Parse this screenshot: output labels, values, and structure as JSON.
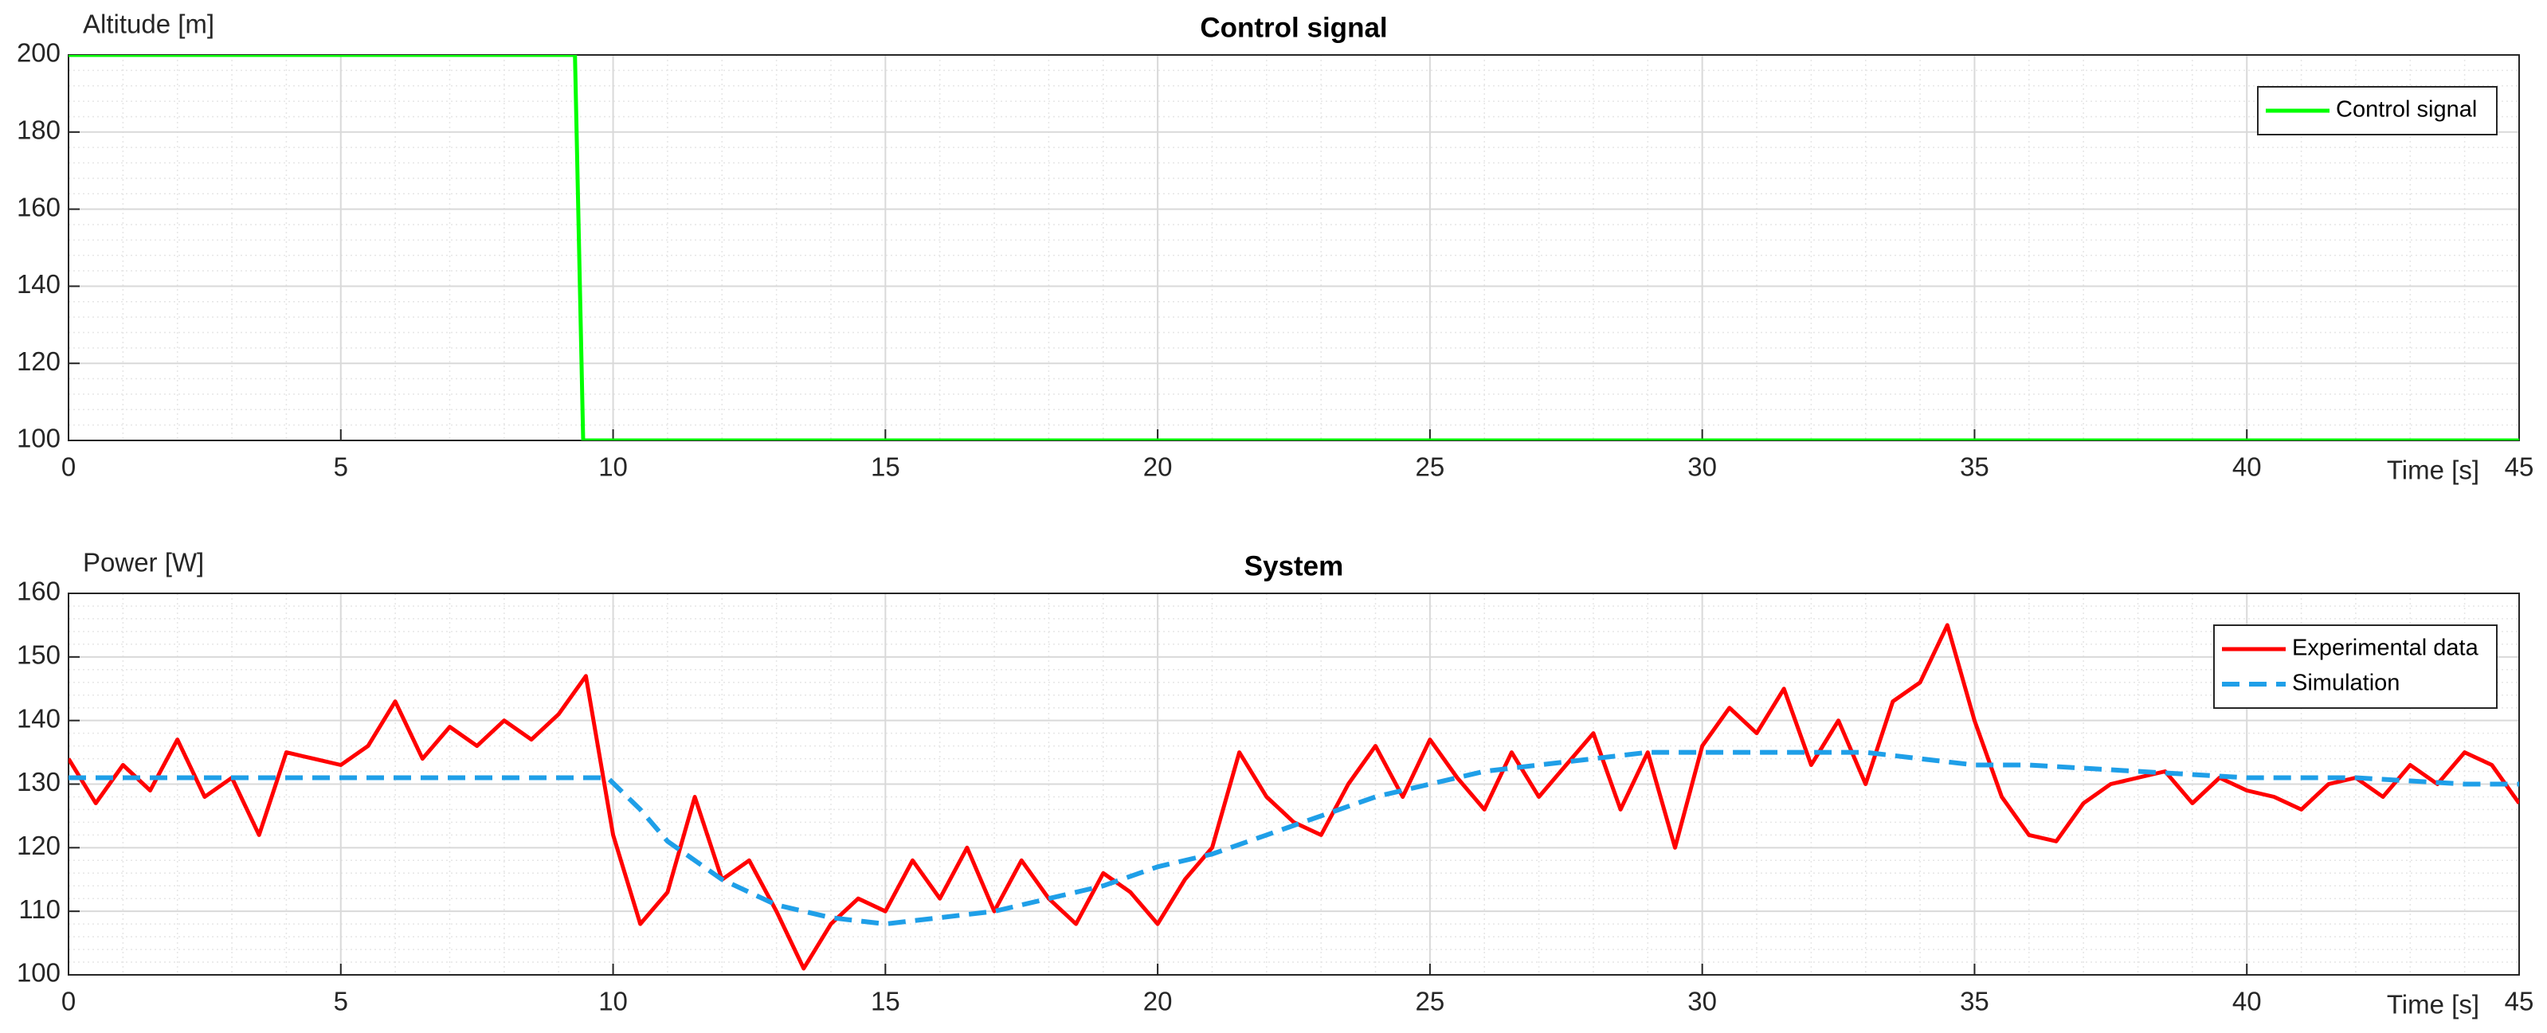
{
  "chart_data": [
    {
      "type": "line",
      "title": "Control signal",
      "y_label": "Altitude [m]",
      "x_label": "Time [s]",
      "xlim": [
        0,
        45
      ],
      "xticks": [
        0,
        5,
        10,
        15,
        20,
        25,
        30,
        35,
        40,
        45
      ],
      "ylim": [
        100,
        200
      ],
      "yticks": [
        100,
        120,
        140,
        160,
        180,
        200
      ],
      "grid": true,
      "minor_grid": true,
      "legend": "upper right",
      "series": [
        {
          "name": "Control signal",
          "color": "#00ff00",
          "linestyle": "solid",
          "x": [
            0,
            9.3,
            9.45,
            45
          ],
          "values": [
            200,
            200,
            100,
            100
          ]
        }
      ]
    },
    {
      "type": "line",
      "title": "System",
      "y_label": "Power [W]",
      "x_label": "Time [s]",
      "xlim": [
        0,
        45
      ],
      "xticks": [
        0,
        5,
        10,
        15,
        20,
        25,
        30,
        35,
        40,
        45
      ],
      "ylim": [
        100,
        160
      ],
      "yticks": [
        100,
        110,
        120,
        130,
        140,
        150,
        160
      ],
      "grid": true,
      "minor_grid": true,
      "legend": "upper right",
      "series": [
        {
          "name": "Experimental data",
          "color": "#ff0000",
          "linestyle": "solid",
          "x": [
            0,
            0.5,
            1,
            1.5,
            2,
            2.5,
            3,
            3.5,
            4,
            4.5,
            5,
            5.5,
            6,
            6.5,
            7,
            7.5,
            8,
            8.5,
            9,
            9.5,
            10,
            10.5,
            11,
            11.5,
            12,
            12.5,
            13,
            13.5,
            14,
            14.5,
            15,
            15.5,
            16,
            16.5,
            17,
            17.5,
            18,
            18.5,
            19,
            19.5,
            20,
            20.5,
            21,
            21.5,
            22,
            22.5,
            23,
            23.5,
            24,
            24.5,
            25,
            25.5,
            26,
            26.5,
            27,
            27.5,
            28,
            28.5,
            29,
            29.5,
            30,
            30.5,
            31,
            31.5,
            32,
            32.5,
            33,
            33.5,
            34,
            34.5,
            35,
            35.5,
            36,
            36.5,
            37,
            37.5,
            38,
            38.5,
            39,
            39.5,
            40,
            40.5,
            41,
            41.5,
            42,
            42.5,
            43,
            43.5,
            44,
            44.5,
            45
          ],
          "values": [
            134,
            127,
            133,
            129,
            137,
            128,
            131,
            122,
            135,
            134,
            133,
            136,
            143,
            134,
            139,
            136,
            140,
            137,
            141,
            147,
            122,
            108,
            113,
            128,
            115,
            118,
            110,
            101,
            108,
            112,
            110,
            118,
            112,
            120,
            110,
            118,
            112,
            108,
            116,
            113,
            108,
            115,
            120,
            135,
            128,
            124,
            122,
            130,
            136,
            128,
            137,
            131,
            126,
            135,
            128,
            133,
            138,
            126,
            135,
            120,
            136,
            142,
            138,
            145,
            133,
            140,
            130,
            143,
            146,
            155,
            140,
            128,
            122,
            121,
            127,
            130,
            131,
            132,
            127,
            131,
            129,
            128,
            126,
            130,
            131,
            128,
            133,
            130,
            135,
            133,
            127
          ]
        },
        {
          "name": "Simulation",
          "color": "#1f9fe8",
          "linestyle": "dashed",
          "x": [
            0,
            2,
            4,
            6,
            8,
            9.9,
            10.5,
            11,
            12,
            13,
            14,
            15,
            16,
            17,
            18,
            19,
            20,
            21,
            22,
            23,
            24,
            25,
            26,
            27,
            28,
            29,
            30,
            31,
            32,
            33,
            34,
            35,
            36,
            38,
            40,
            42,
            44,
            45
          ],
          "values": [
            131,
            131,
            131,
            131,
            131,
            131,
            126,
            121,
            115,
            111,
            109,
            108,
            109,
            110,
            112,
            114,
            117,
            119,
            122,
            125,
            128,
            130,
            132,
            133,
            134,
            135,
            135,
            135,
            135,
            135,
            134,
            133,
            133,
            132,
            131,
            131,
            130,
            130
          ]
        }
      ]
    }
  ]
}
